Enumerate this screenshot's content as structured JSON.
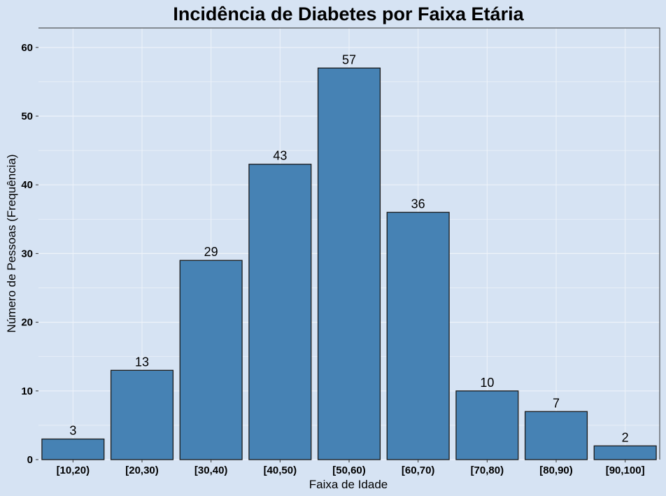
{
  "chart_data": {
    "type": "bar",
    "title": "Incidência de Diabetes por Faixa Etária",
    "xlabel": "Faixa de Idade",
    "ylabel": "Número de Pessoas (Frequência)",
    "categories": [
      "[10,20)",
      "[20,30)",
      "[30,40)",
      "[40,50)",
      "[50,60)",
      "[60,70)",
      "[70,80)",
      "[80,90)",
      "[90,100]"
    ],
    "values": [
      3,
      13,
      29,
      43,
      57,
      36,
      10,
      7,
      2
    ],
    "data_labels": [
      "3",
      "13",
      "29",
      "43",
      "57",
      "36",
      "10",
      "7",
      "2"
    ],
    "yticks": [
      0,
      10,
      20,
      30,
      40,
      50,
      60
    ],
    "ytick_labels": [
      "0",
      "10",
      "20",
      "30",
      "40",
      "50",
      "60"
    ],
    "ylim": [
      0,
      60
    ],
    "grid": true,
    "legend": "none",
    "colors": {
      "background": "#d6e3f3",
      "bar_fill": "#4682b4",
      "bar_stroke": "#1a1a1a",
      "grid": "#eef3fa"
    }
  }
}
